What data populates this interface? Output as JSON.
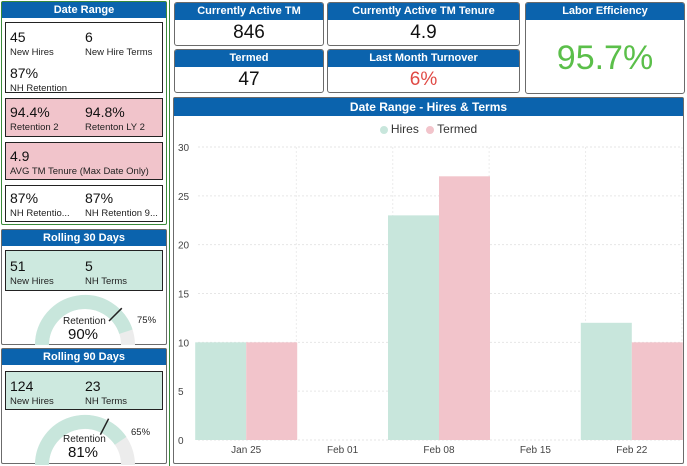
{
  "left": {
    "date_range": {
      "title": "Date Range",
      "new_hires_value": "45",
      "new_hires_label": "New Hires",
      "nh_terms_value": "6",
      "nh_terms_label": "New Hire Terms",
      "nh_retention_value": "87%",
      "nh_retention_label": "NH Retention",
      "retention2_value": "94.4%",
      "retention2_label": "Retention 2",
      "retention_ly2_value": "94.8%",
      "retention_ly2_label": "Retenton LY 2",
      "avg_tenure_value": "4.9",
      "avg_tenure_label": "AVG TM Tenure (Max Date Only)",
      "nh_ret_a_value": "87%",
      "nh_ret_a_label": "NH Retentio...",
      "nh_ret_b_value": "87%",
      "nh_ret_b_label": "NH Retention 9..."
    },
    "rolling30": {
      "title": "Rolling 30 Days",
      "new_hires_value": "51",
      "new_hires_label": "New Hires",
      "nh_terms_value": "5",
      "nh_terms_label": "NH Terms",
      "gauge_label": "Retention",
      "gauge_value": "90%",
      "gauge_target": "75%",
      "gauge_fraction": 0.9,
      "target_fraction": 0.75
    },
    "rolling90": {
      "title": "Rolling 90 Days",
      "new_hires_value": "124",
      "new_hires_label": "New Hires",
      "nh_terms_value": "23",
      "nh_terms_label": "NH Terms",
      "gauge_label": "Retention",
      "gauge_value": "81%",
      "gauge_target": "65%",
      "gauge_fraction": 0.81,
      "target_fraction": 0.65
    }
  },
  "kpis": {
    "active_tm_title": "Currently Active TM",
    "active_tm_value": "846",
    "active_tenure_title": "Currently Active TM Tenure",
    "active_tenure_value": "4.9",
    "labor_eff_title": "Labor Efficiency",
    "labor_eff_value": "95.7%",
    "termed_title": "Termed",
    "termed_value": "47",
    "turnover_title": "Last Month Turnover",
    "turnover_value": "6%"
  },
  "colors": {
    "header_blue": "#0b63ad",
    "hires": "#c8e6dc",
    "termed": "#f2c4cb",
    "labor_green": "#5bbf4a",
    "turnover_red": "#e04a45"
  },
  "chart_data": {
    "type": "bar",
    "title": "Date Range - Hires & Terms",
    "categories": [
      "Jan 25",
      "Feb 01",
      "Feb 08",
      "Feb 15",
      "Feb 22"
    ],
    "series": [
      {
        "name": "Hires",
        "values": [
          10,
          0,
          23,
          0,
          12
        ]
      },
      {
        "name": "Termed",
        "values": [
          10,
          0,
          27,
          0,
          10
        ]
      }
    ],
    "yticks": [
      "0",
      "5",
      "10",
      "15",
      "20",
      "25",
      "30"
    ],
    "ylim": [
      0,
      30
    ],
    "xlabel": "",
    "ylabel": "",
    "legend": "top-center"
  }
}
